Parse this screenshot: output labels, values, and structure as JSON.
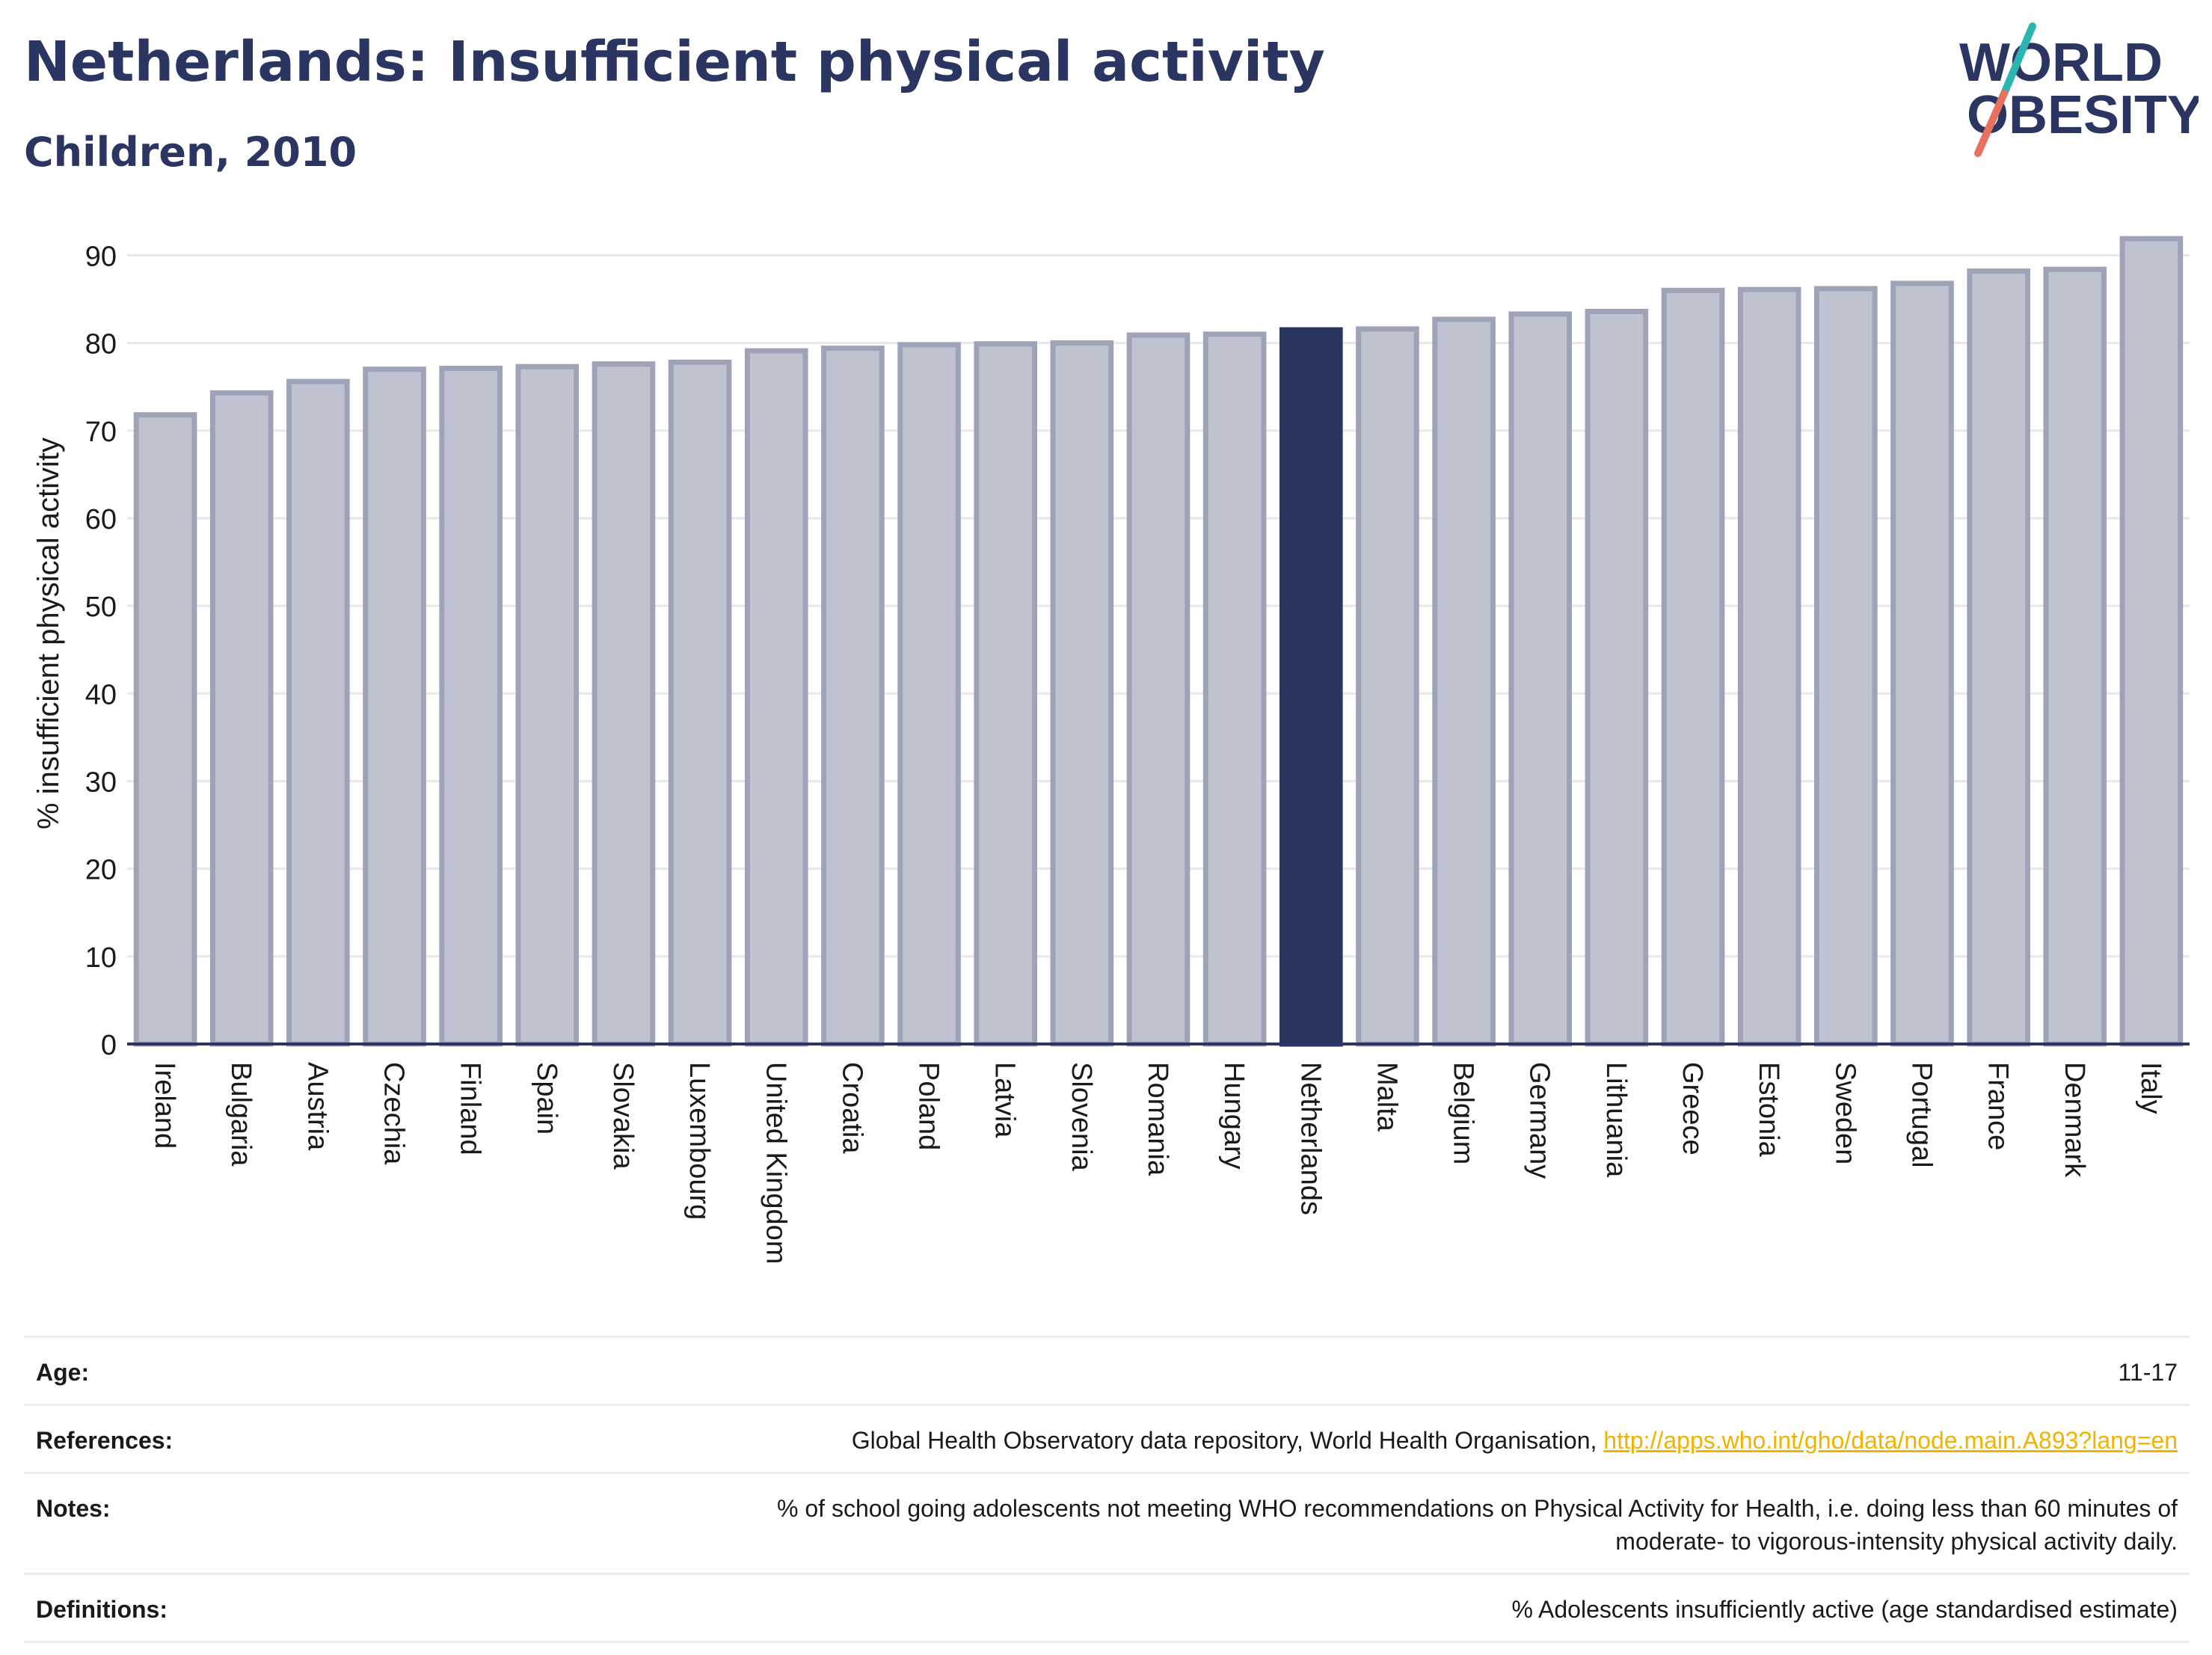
{
  "header": {
    "title": "Netherlands: Insufficient physical activity",
    "subtitle": "Children, 2010"
  },
  "logo": {
    "line1": "WORLD",
    "line2": "OBESITY"
  },
  "chart_data": {
    "type": "bar",
    "title": "Netherlands: Insufficient physical activity",
    "subtitle": "Children, 2010",
    "ylabel": "% insufficient physical activity",
    "xlabel": "",
    "ylim": [
      0,
      92
    ],
    "yticks": [
      0,
      10,
      20,
      30,
      40,
      50,
      60,
      70,
      80,
      90
    ],
    "grid": true,
    "highlight": "Netherlands",
    "categories": [
      "Ireland",
      "Bulgaria",
      "Austria",
      "Czechia",
      "Finland",
      "Spain",
      "Slovakia",
      "Luxembourg",
      "United Kingdom",
      "Croatia",
      "Poland",
      "Latvia",
      "Slovenia",
      "Romania",
      "Hungary",
      "Netherlands",
      "Malta",
      "Belgium",
      "Germany",
      "Lithuania",
      "Greece",
      "Estonia",
      "Sweden",
      "Portugal",
      "France",
      "Denmark",
      "Italy"
    ],
    "values": [
      71.8,
      74.3,
      75.6,
      77.0,
      77.1,
      77.3,
      77.6,
      77.8,
      79.1,
      79.4,
      79.8,
      79.9,
      80.0,
      80.9,
      81.0,
      81.5,
      81.6,
      82.7,
      83.3,
      83.6,
      86.0,
      86.1,
      86.2,
      86.8,
      88.2,
      88.4,
      91.9
    ],
    "colors": {
      "bar": "#bfc2cf",
      "bar_border": "#9ea3b8",
      "highlight": "#2b3561",
      "axis": "#2b3561",
      "grid": "#e6e8ee",
      "text": "#1a1a1a"
    }
  },
  "info": {
    "age_label": "Age:",
    "age_value": "11-17",
    "references_label": "References:",
    "references_text": "Global Health Observatory data repository, World Health Organisation,",
    "references_link": "http://apps.who.int/gho/data/node.main.A893?lang=en",
    "notes_label": "Notes:",
    "notes_line1": "% of school going adolescents not meeting WHO recommendations on Physical Activity for Health, i.e. doing less than 60 minutes of",
    "notes_line2": "moderate- to vigorous-intensity physical activity daily.",
    "definitions_label": "Definitions:",
    "definitions_value": "% Adolescents insufficiently active (age standardised estimate)"
  }
}
